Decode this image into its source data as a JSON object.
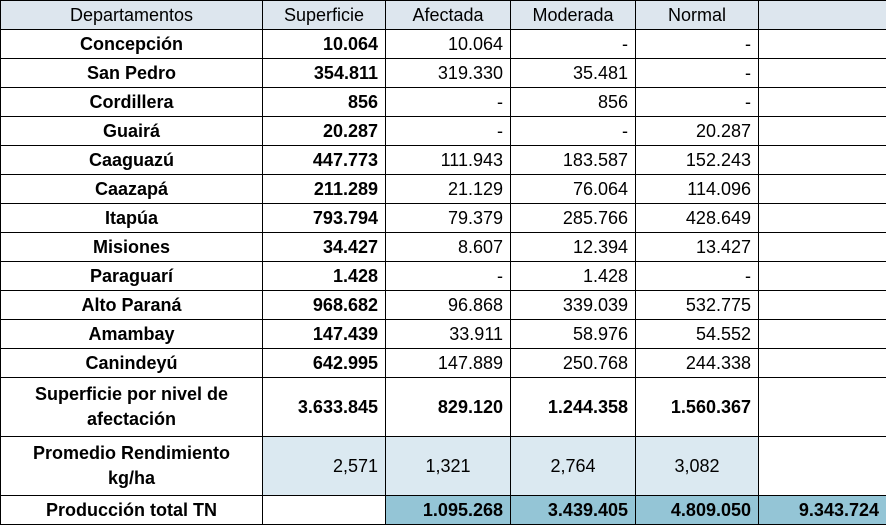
{
  "header": {
    "col1": "Departamentos",
    "col2": "Superficie",
    "col3": "Afectada",
    "col4": "Moderada",
    "col5": "Normal",
    "col6": ""
  },
  "rows": [
    {
      "name": "Concepción",
      "superficie": "10.064",
      "afectada": "10.064",
      "moderada": "-",
      "normal": "-"
    },
    {
      "name": "San Pedro",
      "superficie": "354.811",
      "afectada": "319.330",
      "moderada": "35.481",
      "normal": "-"
    },
    {
      "name": "Cordillera",
      "superficie": "856",
      "afectada": "-",
      "moderada": "856",
      "normal": "-"
    },
    {
      "name": "Guairá",
      "superficie": "20.287",
      "afectada": "-",
      "moderada": "-",
      "normal": "20.287"
    },
    {
      "name": "Caaguazú",
      "superficie": "447.773",
      "afectada": "111.943",
      "moderada": "183.587",
      "normal": "152.243"
    },
    {
      "name": "Caazapá",
      "superficie": "211.289",
      "afectada": "21.129",
      "moderada": "76.064",
      "normal": "114.096"
    },
    {
      "name": "Itapúa",
      "superficie": "793.794",
      "afectada": "79.379",
      "moderada": "285.766",
      "normal": "428.649"
    },
    {
      "name": "Misiones",
      "superficie": "34.427",
      "afectada": "8.607",
      "moderada": "12.394",
      "normal": "13.427"
    },
    {
      "name": "Paraguarí",
      "superficie": "1.428",
      "afectada": "-",
      "moderada": "1.428",
      "normal": "-"
    },
    {
      "name": "Alto Paraná",
      "superficie": "968.682",
      "afectada": "96.868",
      "moderada": "339.039",
      "normal": "532.775"
    },
    {
      "name": "Amambay",
      "superficie": "147.439",
      "afectada": "33.911",
      "moderada": "58.976",
      "normal": "54.552"
    },
    {
      "name": "Canindeyú",
      "superficie": "642.995",
      "afectada": "147.889",
      "moderada": "250.768",
      "normal": "244.338"
    }
  ],
  "summary": {
    "label": "Superficie por nivel de afectación",
    "superficie": "3.633.845",
    "afectada": "829.120",
    "moderada": "1.244.358",
    "normal": "1.560.367"
  },
  "promedio": {
    "label": "Promedio  Rendimiento kg/ha",
    "superficie": "2,571",
    "afectada": "1,321",
    "moderada": "2,764",
    "normal": "3,082"
  },
  "produccion": {
    "label": "Producción total TN",
    "afectada": "1.095.268",
    "moderada": "3.439.405",
    "normal": "4.809.050",
    "total": "9.343.724"
  },
  "colors": {
    "header_bg": "#dde6ee",
    "light_bg": "#dbe9f1",
    "dark_bg": "#94c5d6"
  }
}
